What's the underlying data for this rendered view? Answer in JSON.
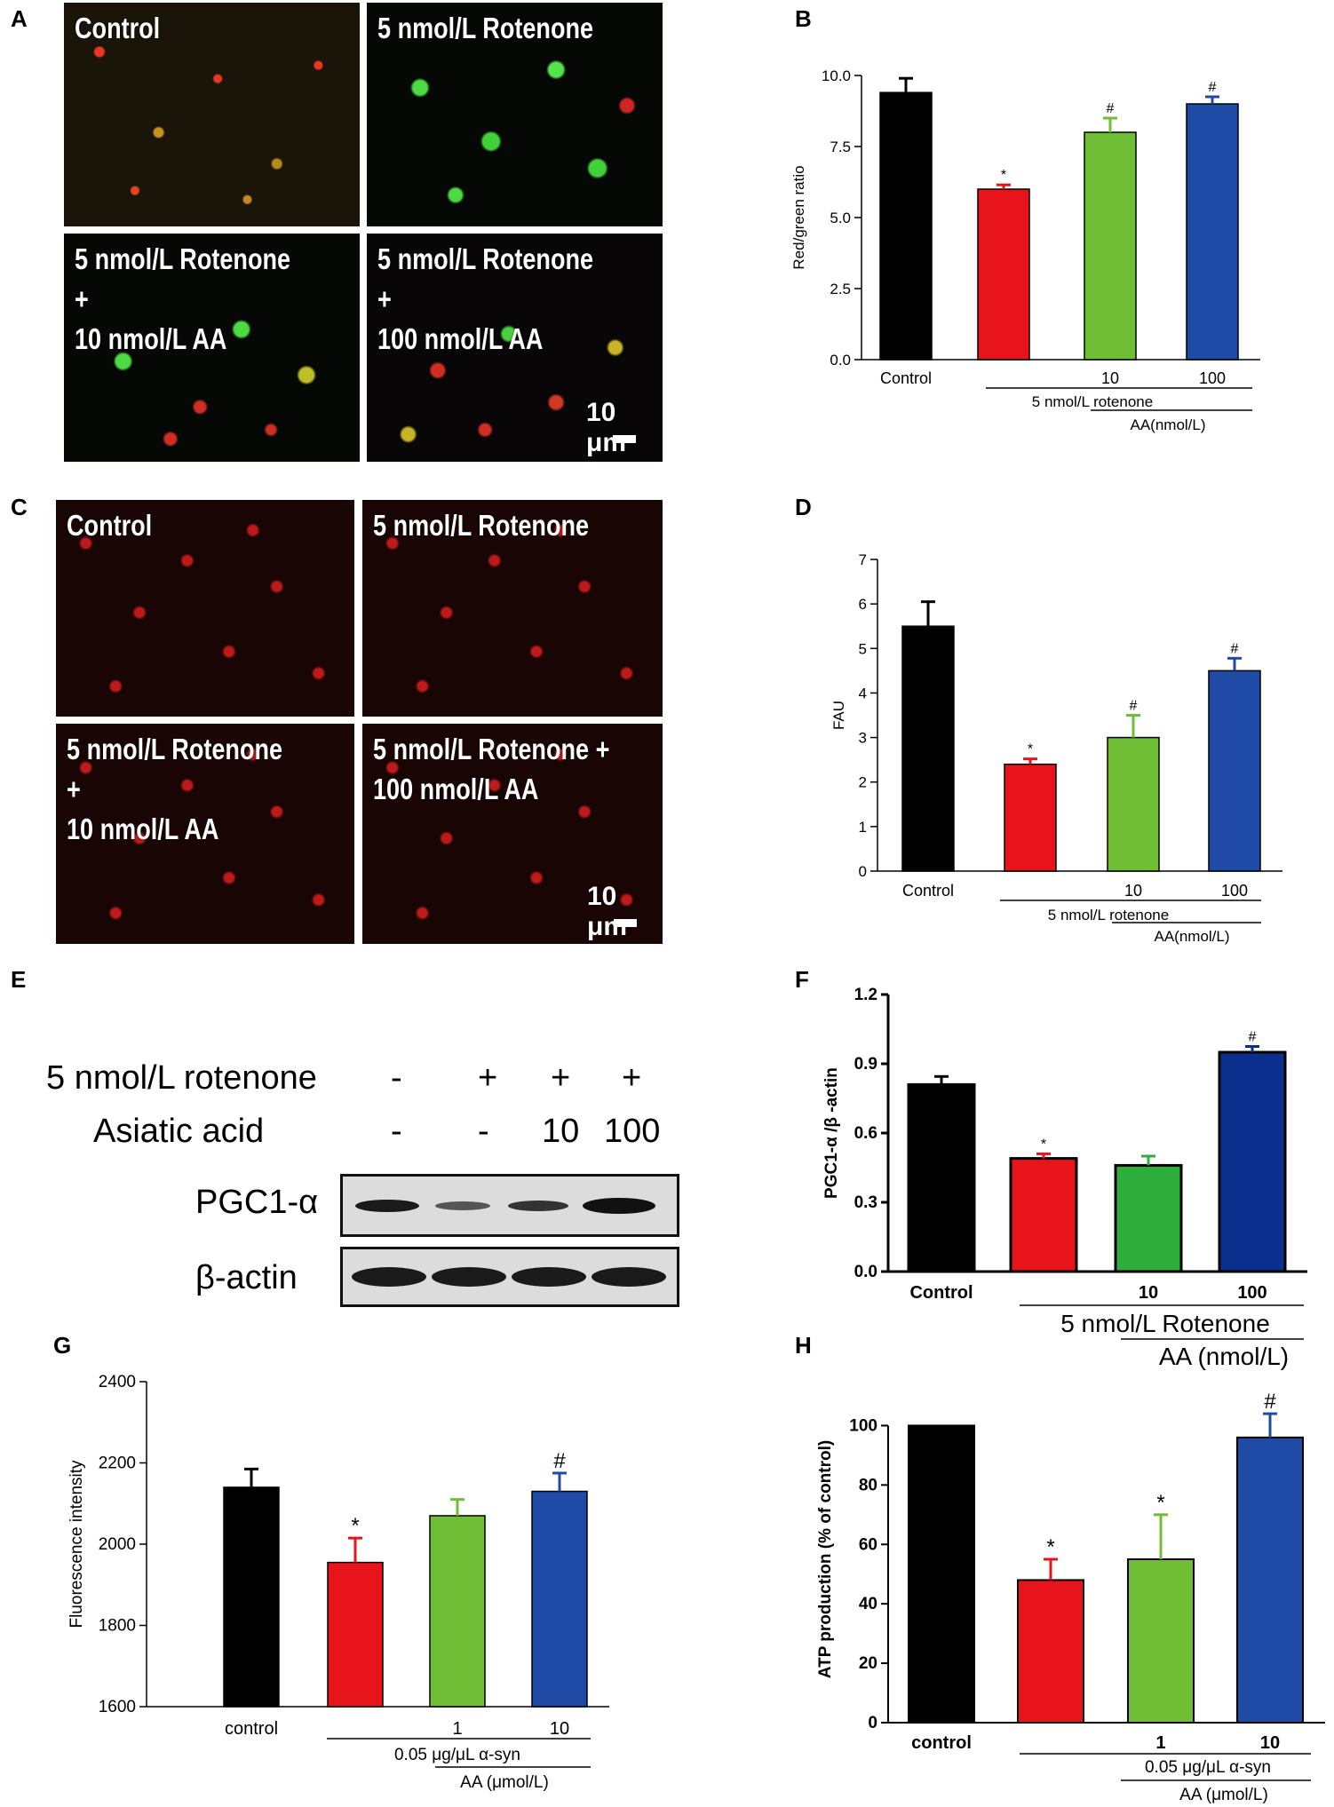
{
  "panels": {
    "A": {
      "label": "A",
      "images": [
        {
          "text": "Control",
          "stain": "jc1"
        },
        {
          "text": "5  nmol/L Rotenone",
          "stain": "jc2"
        },
        {
          "text": "5 nmol/L Rotenone +\n10 nmol/L AA",
          "stain": "jc3"
        },
        {
          "text": "5 nmol/L Rotenone +\n100 nmol/L AA",
          "stain": "jc4"
        }
      ],
      "scalebar": "10 μm"
    },
    "C": {
      "label": "C",
      "images": [
        {
          "text": "Control",
          "stain": "tmrm"
        },
        {
          "text": "5  nmol/L Rotenone",
          "stain": "tmrm"
        },
        {
          "text": "5 nmol/L Rotenone +\n10 nmol/L AA",
          "stain": "tmrm"
        },
        {
          "text": "5 nmol/L Rotenone +\n100 nmol/L AA",
          "stain": "tmrm"
        }
      ],
      "scalebar": "10 μm"
    },
    "E": {
      "label": "E",
      "row1_label": "5 nmol/L rotenone",
      "row1_signs": [
        "-",
        "+",
        "+",
        "+"
      ],
      "row2_label": "Asiatic acid",
      "row2_signs": [
        "-",
        "-",
        "10",
        "100"
      ],
      "blot1_label": "PGC1-α",
      "blot2_label": "β-actin"
    }
  },
  "chart_data": [
    {
      "panel": "B",
      "type": "bar",
      "categories": [
        "Control",
        "",
        "10",
        "100"
      ],
      "values": [
        9.4,
        6.0,
        8.0,
        9.0
      ],
      "errors": [
        0.5,
        0.15,
        0.5,
        0.25
      ],
      "marks": [
        "",
        "*",
        "#",
        "#"
      ],
      "colors": [
        "#000000",
        "#e8141c",
        "#6fbe36",
        "#1f4aa6"
      ],
      "ylabel": "Red/green ratio",
      "ylim": [
        0,
        10
      ],
      "yticks": [
        0.0,
        2.5,
        5.0,
        7.5,
        10.0
      ],
      "ytick_labels": [
        "0.0",
        "2.5",
        "5.0",
        "7.5",
        "10.0"
      ],
      "group_labels": [
        "5 nmol/L rotenone",
        "AA(nmol/L)"
      ]
    },
    {
      "panel": "D",
      "type": "bar",
      "categories": [
        "Control",
        "",
        "10",
        "100"
      ],
      "values": [
        5.5,
        2.4,
        3.0,
        4.5
      ],
      "errors": [
        0.55,
        0.12,
        0.5,
        0.28
      ],
      "marks": [
        "",
        "*",
        "#",
        "#"
      ],
      "colors": [
        "#000000",
        "#e8141c",
        "#6fbe36",
        "#1f4aa6"
      ],
      "ylabel": "FAU",
      "ylim": [
        0,
        7
      ],
      "yticks": [
        0,
        1,
        2,
        3,
        4,
        5,
        6,
        7
      ],
      "ytick_labels": [
        "0",
        "1",
        "2",
        "3",
        "4",
        "5",
        "6",
        "7"
      ],
      "group_labels": [
        "5 nmol/L rotenone",
        "AA(nmol/L)"
      ]
    },
    {
      "panel": "F",
      "type": "bar",
      "categories": [
        "Control",
        "",
        "10",
        "100"
      ],
      "values": [
        0.81,
        0.49,
        0.46,
        0.95
      ],
      "errors": [
        0.035,
        0.02,
        0.04,
        0.025
      ],
      "marks": [
        "",
        "*",
        "",
        "#"
      ],
      "colors": [
        "#000000",
        "#e8141c",
        "#2fae3c",
        "#0a2f8c"
      ],
      "ylabel": "PGC1-α /β -actin",
      "ylim": [
        0,
        1.2
      ],
      "yticks": [
        0.0,
        0.3,
        0.6,
        0.9,
        1.2
      ],
      "ytick_labels": [
        "0.0",
        "0.3",
        "0.6",
        "0.9",
        "1.2"
      ],
      "group_labels": [
        "5 nmol/L Rotenone",
        "AA (nmol/L)"
      ]
    },
    {
      "panel": "G",
      "type": "bar",
      "categories": [
        "control",
        "",
        "1",
        "10"
      ],
      "values": [
        2140,
        1955,
        2070,
        2130
      ],
      "errors": [
        45,
        60,
        40,
        45
      ],
      "marks": [
        "",
        "*",
        "",
        "#"
      ],
      "colors": [
        "#000000",
        "#e8141c",
        "#6fbe36",
        "#1f4aa6"
      ],
      "ylabel": "Fluorescence intensity",
      "ylim": [
        1600,
        2400
      ],
      "yticks": [
        1600,
        1800,
        2000,
        2200,
        2400
      ],
      "ytick_labels": [
        "1600",
        "1800",
        "2000",
        "2200",
        "2400"
      ],
      "group_labels": [
        "0.05 μg/μL α-syn",
        "AA (μmol/L)"
      ]
    },
    {
      "panel": "H",
      "type": "bar",
      "categories": [
        "control",
        "",
        "1",
        "10"
      ],
      "values": [
        100,
        48,
        55,
        96
      ],
      "errors": [
        0,
        7,
        15,
        8
      ],
      "marks": [
        "",
        "*",
        "*",
        "#"
      ],
      "colors": [
        "#000000",
        "#e8141c",
        "#6fbe36",
        "#1f4aa6"
      ],
      "ylabel": "ATP production (% of control)",
      "ylim": [
        0,
        110
      ],
      "yticks": [
        0,
        20,
        40,
        60,
        80,
        100
      ],
      "ytick_labels": [
        "0",
        "20",
        "40",
        "60",
        "80",
        "100"
      ],
      "group_labels": [
        "0.05 μg/μL α-syn",
        "AA (μmol/L)"
      ]
    }
  ]
}
